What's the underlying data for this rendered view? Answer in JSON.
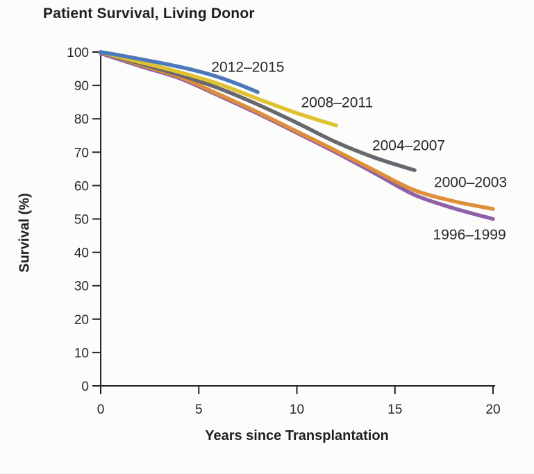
{
  "figure": {
    "title": "Patient Survival, Living Donor",
    "background": "#fcfcfa",
    "text_color": "#211e1e",
    "axis_color": "#262221"
  },
  "chart_data": {
    "type": "line",
    "title": "Patient Survival, Living Donor",
    "xlabel": "Years since Transplantation",
    "ylabel": "Survival (%)",
    "xlim": [
      0,
      20
    ],
    "ylim": [
      0,
      100
    ],
    "x_ticks": [
      0,
      5,
      10,
      15,
      20
    ],
    "y_ticks": [
      0,
      10,
      20,
      30,
      40,
      50,
      60,
      70,
      80,
      90,
      100
    ],
    "grid": false,
    "legend": "inline-annotations",
    "line_width": 5.5,
    "series": [
      {
        "name": "1996–1999",
        "color": "#8f62a8",
        "x": [
          0,
          2,
          4,
          6,
          8,
          10,
          12,
          14,
          16,
          18,
          20
        ],
        "y": [
          99.6,
          95.8,
          92.2,
          87.0,
          81.6,
          75.8,
          69.9,
          63.6,
          57.2,
          53.2,
          50.0
        ],
        "label_at": [
          18.8,
          45.3
        ]
      },
      {
        "name": "2000–2003",
        "color": "#dd8f3c",
        "x": [
          0,
          2,
          4,
          6,
          8,
          10,
          12,
          14,
          16,
          18,
          20
        ],
        "y": [
          100,
          96.2,
          92.6,
          87.4,
          82.0,
          76.2,
          70.4,
          64.4,
          58.6,
          55.3,
          53.0
        ],
        "label_at": [
          18.85,
          61.0
        ]
      },
      {
        "name": "2004–2007",
        "color": "#67676f",
        "x": [
          0,
          2,
          4,
          6,
          8,
          10,
          12,
          14,
          16
        ],
        "y": [
          100,
          96.6,
          93.2,
          89.2,
          84.3,
          78.8,
          73.0,
          68.3,
          64.6
        ],
        "label_at": [
          15.7,
          72.0
        ]
      },
      {
        "name": "2008–2011",
        "color": "#e0c12f",
        "x": [
          0,
          2,
          4,
          6,
          8,
          10,
          12
        ],
        "y": [
          100,
          97.0,
          94.0,
          90.5,
          86.0,
          81.7,
          78.0
        ],
        "label_at": [
          12.05,
          84.9
        ]
      },
      {
        "name": "2012–2015",
        "color": "#4b79bb",
        "x": [
          0,
          1,
          2,
          3,
          4,
          5,
          6,
          7,
          8
        ],
        "y": [
          100,
          99.0,
          97.9,
          96.8,
          95.6,
          94.2,
          92.5,
          90.4,
          88.0
        ],
        "label_at": [
          7.5,
          95.5
        ]
      }
    ]
  }
}
